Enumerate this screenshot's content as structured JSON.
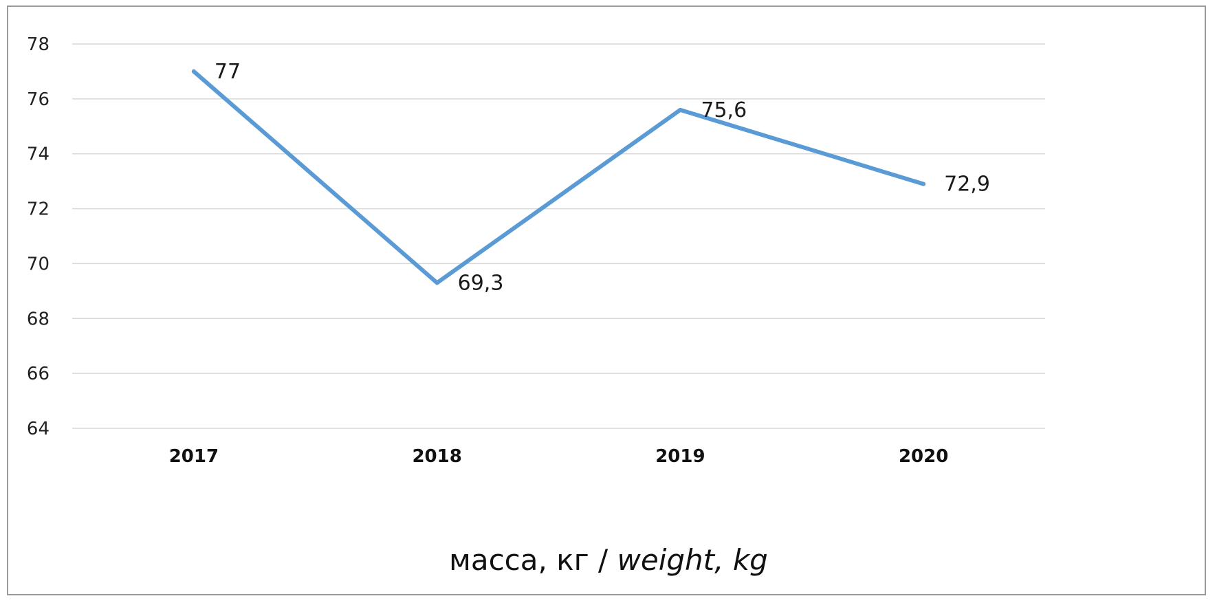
{
  "chart_data": {
    "type": "line",
    "categories": [
      "2017",
      "2018",
      "2019",
      "2020"
    ],
    "series": [
      {
        "values": [
          77,
          69.3,
          75.6,
          72.9
        ],
        "labels": [
          "77",
          "69,3",
          "75,6",
          "72,9"
        ],
        "color": "#5b9bd5"
      }
    ],
    "ylim": [
      64,
      78
    ],
    "yticks": [
      "64",
      "66",
      "68",
      "70",
      "72",
      "74",
      "76",
      "78"
    ],
    "xlabel_ru": "масса, кг / ",
    "xlabel_en": "weight, kg",
    "grid": true,
    "legend": "none"
  }
}
